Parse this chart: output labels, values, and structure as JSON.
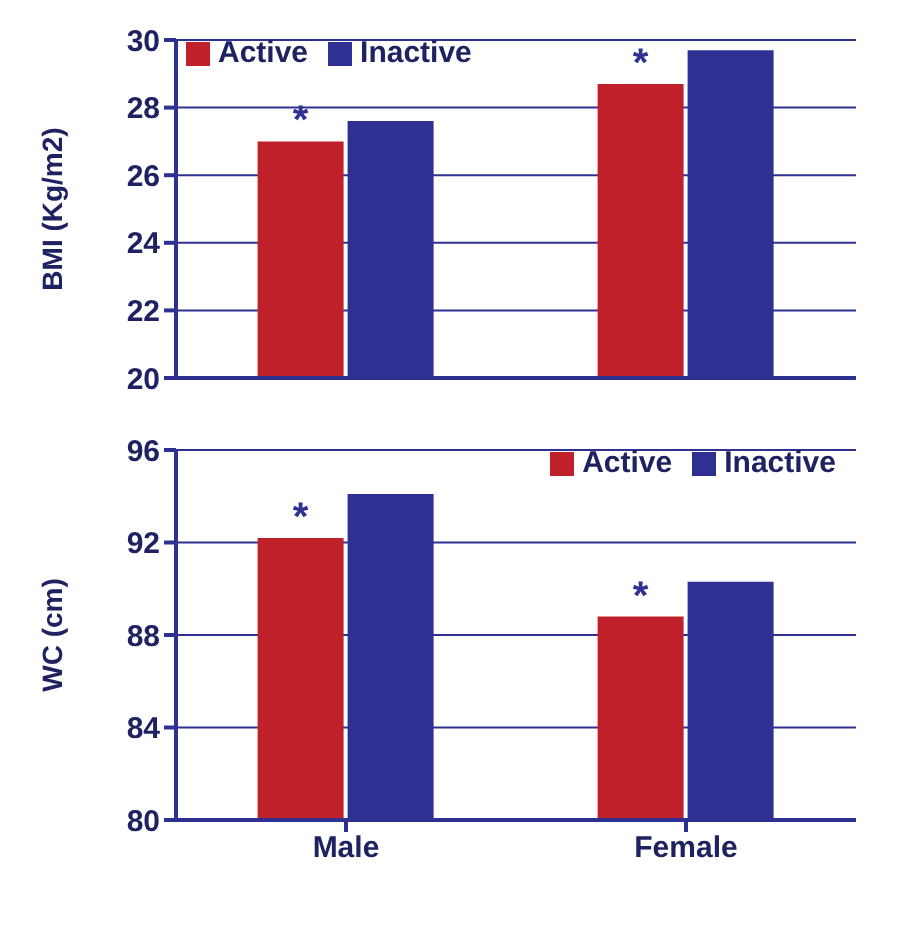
{
  "chart_data": [
    {
      "type": "bar",
      "ylabel": "BMI (Kg/m2)",
      "categories": [
        "Male",
        "Female"
      ],
      "series": [
        {
          "name": "Active",
          "color": "#c0202a",
          "values": [
            27.0,
            28.7
          ]
        },
        {
          "name": "Inactive",
          "color": "#2e3192",
          "values": [
            27.6,
            29.7
          ]
        }
      ],
      "ylim": [
        20,
        30
      ],
      "yticks": [
        20,
        22,
        24,
        26,
        28,
        30
      ],
      "grid": "y",
      "legend": "top left",
      "tick_labels": "y",
      "annotations": [
        {
          "text": "*",
          "x": "Male",
          "y": 27.0
        },
        {
          "text": "*",
          "x": "Female",
          "y": 28.7
        }
      ]
    },
    {
      "type": "bar",
      "ylabel": "WC (cm)",
      "categories": [
        "Male",
        "Female"
      ],
      "series": [
        {
          "name": "Active",
          "color": "#c0202a",
          "values": [
            92.2,
            88.8
          ]
        },
        {
          "name": "Inactive",
          "color": "#2e3192",
          "values": [
            94.1,
            90.3
          ]
        }
      ],
      "ylim": [
        80,
        96
      ],
      "yticks": [
        80,
        84,
        88,
        92,
        96
      ],
      "grid": "y",
      "legend": "top right",
      "annotations": [
        {
          "text": "*",
          "x": "Male",
          "y": 92.2
        },
        {
          "text": "*",
          "x": "Female",
          "y": 88.8
        }
      ]
    }
  ]
}
